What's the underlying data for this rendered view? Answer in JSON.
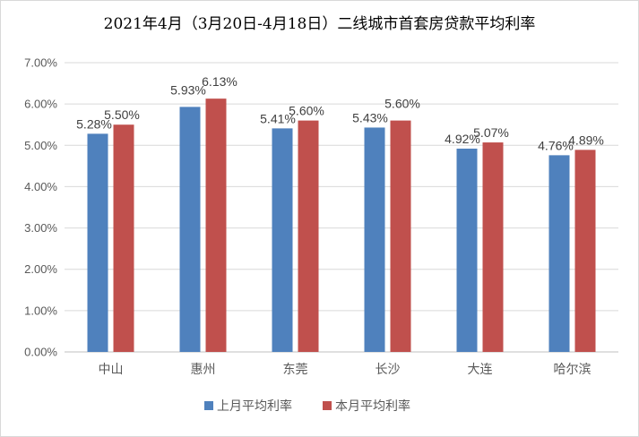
{
  "chart_data": {
    "type": "bar",
    "title": "2021年4月（3月20日-4月18日）二线城市首套房贷款平均利率",
    "categories": [
      "中山",
      "惠州",
      "东莞",
      "长沙",
      "大连",
      "哈尔滨"
    ],
    "series": [
      {
        "name": "上月平均利率",
        "color": "#4f81bd",
        "values": [
          5.28,
          5.93,
          5.41,
          5.43,
          4.92,
          4.76
        ],
        "labels": [
          "5.28%",
          "5.93%",
          "5.41%",
          "5.43%",
          "4.92%",
          "4.76%"
        ]
      },
      {
        "name": "本月平均利率",
        "color": "#c0504d",
        "values": [
          5.5,
          6.13,
          5.6,
          5.6,
          5.07,
          4.89
        ],
        "labels": [
          "5.50%",
          "6.13%",
          "5.60%",
          "5.60%",
          "5.07%",
          "4.89%"
        ]
      }
    ],
    "yticks": [
      "0.00%",
      "1.00%",
      "2.00%",
      "3.00%",
      "4.00%",
      "5.00%",
      "6.00%",
      "7.00%"
    ],
    "ylim": [
      0,
      7
    ],
    "grid": true,
    "legend": "bottom"
  }
}
